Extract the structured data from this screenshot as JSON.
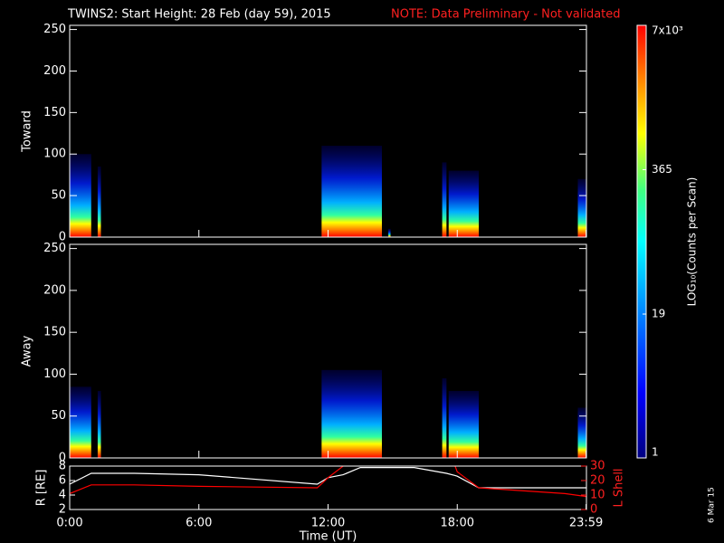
{
  "chart_data": [
    {
      "type": "spectrogram",
      "title": "TWINS2: Start Height: 28 Feb (day  59), 2015",
      "note": "NOTE: Data Preliminary - Not validated",
      "y_label": "Toward",
      "xlim": [
        0,
        24
      ],
      "ylim": [
        0,
        255
      ],
      "yticks": [
        0,
        50,
        100,
        150,
        200,
        250
      ],
      "segments": [
        {
          "x": [
            0,
            1
          ],
          "top": 100
        },
        {
          "x": [
            1.3,
            1.45
          ],
          "top": 85
        },
        {
          "x": [
            11.7,
            14.5
          ],
          "top": 110
        },
        {
          "x": [
            14.8,
            14.9
          ],
          "top": 10
        },
        {
          "x": [
            17.3,
            17.5
          ],
          "top": 90
        },
        {
          "x": [
            17.6,
            19
          ],
          "top": 80
        },
        {
          "x": [
            23.6,
            23.983
          ],
          "top": 70
        }
      ]
    },
    {
      "type": "spectrogram",
      "y_label": "Away",
      "xlim": [
        0,
        24
      ],
      "ylim": [
        0,
        255
      ],
      "yticks": [
        0,
        50,
        100,
        150,
        200,
        250
      ],
      "segments": [
        {
          "x": [
            0,
            1
          ],
          "top": 85
        },
        {
          "x": [
            1.3,
            1.45
          ],
          "top": 80
        },
        {
          "x": [
            11.7,
            14.5
          ],
          "top": 105
        },
        {
          "x": [
            17.3,
            17.5
          ],
          "top": 95
        },
        {
          "x": [
            17.6,
            19
          ],
          "top": 80
        },
        {
          "x": [
            23.6,
            23.983
          ],
          "top": 60
        }
      ]
    },
    {
      "type": "line",
      "x_label": "Time (UT)",
      "y_label": "R [RE]",
      "y2_label": "L Shell",
      "xlim": [
        0,
        24
      ],
      "xticks": [
        {
          "value": 0,
          "label": "0:00"
        },
        {
          "value": 6,
          "label": "6:00"
        },
        {
          "value": 12,
          "label": "12:00"
        },
        {
          "value": 18,
          "label": "18:00"
        },
        {
          "value": 23.983,
          "label": "23:59"
        }
      ],
      "ylim": [
        2,
        8
      ],
      "yticks": [
        2,
        4,
        6,
        8
      ],
      "y2lim": [
        0,
        30
      ],
      "y2ticks": [
        0,
        10,
        20,
        30
      ],
      "x": [
        0,
        1,
        3,
        6,
        11.5,
        12,
        12.7,
        13.5,
        16,
        17.5,
        17.9,
        18,
        19,
        23,
        23.983
      ],
      "series": [
        {
          "color": "#ffffff",
          "values": [
            5.5,
            7,
            7,
            6.8,
            5.5,
            6.4,
            6.8,
            7.8,
            7.8,
            7.0,
            6.7,
            6.6,
            5.0,
            5.0,
            5.0
          ]
        },
        {
          "color": "#ff0000",
          "axis": "y2",
          "values": [
            11,
            17,
            17,
            16,
            15,
            22,
            30,
            null,
            null,
            null,
            30,
            26,
            15,
            11,
            9
          ]
        }
      ]
    },
    {
      "type": "colorbar",
      "label": "LOG₁₀(Counts per Scan)",
      "log_scale": true,
      "ylim": [
        1,
        7000
      ],
      "yticks": [
        1,
        19,
        365,
        {
          "value": 7000,
          "label": "7x10³"
        }
      ]
    }
  ],
  "footer": "6 Mar 15"
}
